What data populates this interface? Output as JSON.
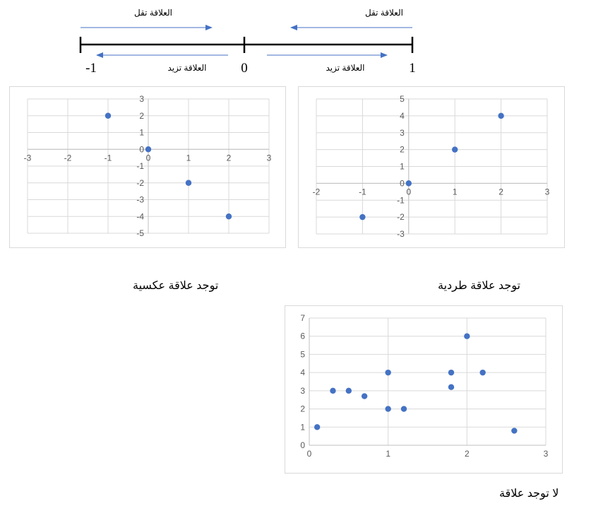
{
  "scale": {
    "labels": {
      "left": "-1",
      "center": "0",
      "right": "1"
    },
    "decrease_label": "العلاقة تقل",
    "increase_label": "العلاقة تزيد",
    "arrow_color": "#4472c4"
  },
  "captions": {
    "negative": "توجد علاقة عكسية",
    "positive": "توجد علاقة طردية",
    "none": "لا توجد علاقة"
  },
  "chart_data": [
    {
      "id": "negative",
      "type": "scatter",
      "title": "",
      "xlabel": "",
      "ylabel": "",
      "xlim": [
        -3,
        3
      ],
      "ylim": [
        -5,
        3
      ],
      "xticks": [
        -3,
        -2,
        -1,
        0,
        1,
        2,
        3
      ],
      "yticks": [
        -5,
        -4,
        -3,
        -2,
        -1,
        0,
        1,
        2,
        3
      ],
      "axis_cross": "origin",
      "grid": true,
      "legend": "none",
      "color": "#4472c4",
      "series": [
        {
          "x": [
            -1,
            0,
            1,
            2
          ],
          "y": [
            2,
            0,
            -2,
            -4
          ]
        }
      ]
    },
    {
      "id": "positive",
      "type": "scatter",
      "title": "",
      "xlabel": "",
      "ylabel": "",
      "xlim": [
        -2,
        3
      ],
      "ylim": [
        -3,
        5
      ],
      "xticks": [
        -2,
        -1,
        0,
        1,
        2,
        3
      ],
      "yticks": [
        -3,
        -2,
        -1,
        0,
        1,
        2,
        3,
        4,
        5
      ],
      "axis_cross": "origin",
      "grid": true,
      "legend": "none",
      "color": "#4472c4",
      "series": [
        {
          "x": [
            -1,
            0,
            1,
            2
          ],
          "y": [
            -2,
            0,
            2,
            4
          ]
        }
      ]
    },
    {
      "id": "none",
      "type": "scatter",
      "title": "",
      "xlabel": "",
      "ylabel": "",
      "xlim": [
        0,
        3
      ],
      "ylim": [
        0,
        7
      ],
      "xticks": [
        0,
        1,
        2,
        3
      ],
      "yticks": [
        0,
        1,
        2,
        3,
        4,
        5,
        6,
        7
      ],
      "axis_cross": "bottom-left",
      "grid": true,
      "legend": "none",
      "color": "#4472c4",
      "series": [
        {
          "x": [
            0.1,
            0.3,
            0.5,
            0.7,
            1,
            1,
            1.2,
            1.8,
            1.8,
            2,
            2.2,
            2.6
          ],
          "y": [
            1,
            3,
            3,
            2.7,
            4,
            2,
            2,
            4,
            3.2,
            6,
            4,
            0.8
          ]
        }
      ]
    }
  ]
}
